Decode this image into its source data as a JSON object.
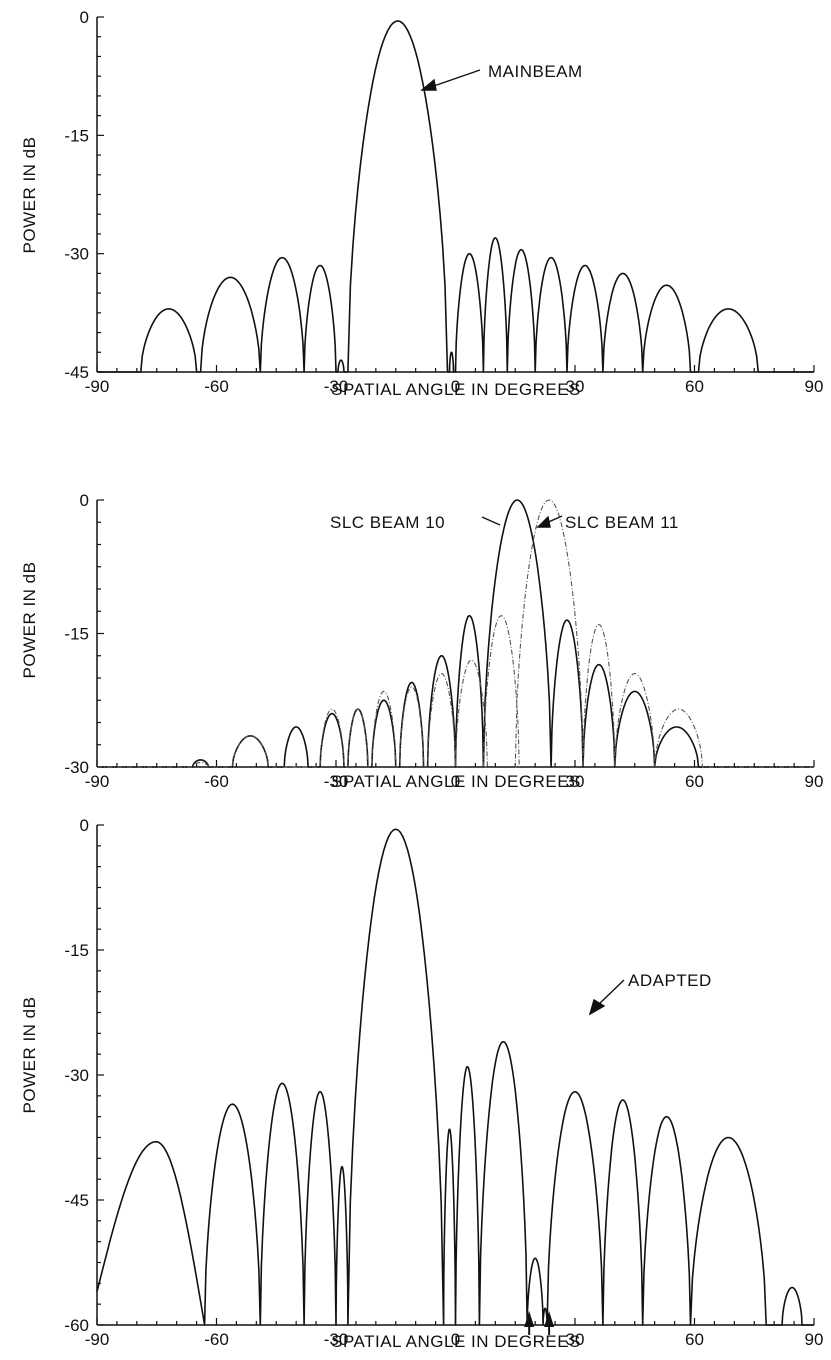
{
  "chart_data": [
    {
      "type": "line",
      "xlabel": "SPATIAL ANGLE IN DEGREES",
      "ylabel": "POWER IN dB",
      "xlim": [
        -90,
        90
      ],
      "ylim": [
        -45,
        0
      ],
      "xticks": [
        "-90",
        "-60",
        "-30",
        "0",
        "30",
        "60",
        "90"
      ],
      "yticks": [
        "0",
        "-15",
        "-30",
        "-45"
      ],
      "grid": false,
      "annotations": [
        "MAINBEAM"
      ],
      "series": [
        {
          "lobes": [
            {
              "a": -79,
              "b": -65,
              "peak": -37
            },
            {
              "a": -64,
              "b": -49,
              "peak": -33
            },
            {
              "a": -49,
              "b": -38,
              "peak": -30.5
            },
            {
              "a": -38,
              "b": -30,
              "peak": -31.5
            },
            {
              "a": -29.5,
              "b": -28,
              "peak": -43.5
            },
            {
              "a": -27,
              "b": -2,
              "peak": -0.5
            },
            {
              "a": -1.5,
              "b": -0.5,
              "peak": -42.5
            },
            {
              "a": 0,
              "b": 7,
              "peak": -30
            },
            {
              "a": 7,
              "b": 13,
              "peak": -28
            },
            {
              "a": 13,
              "b": 20,
              "peak": -29.5
            },
            {
              "a": 20,
              "b": 28,
              "peak": -30.5
            },
            {
              "a": 28,
              "b": 37,
              "peak": -31.5
            },
            {
              "a": 37,
              "b": 47,
              "peak": -32.5
            },
            {
              "a": 47,
              "b": 59,
              "peak": -34
            },
            {
              "a": 61,
              "b": 76,
              "peak": -37
            }
          ],
          "floor": -45,
          "values_at_x": [
            [
              -90,
              -45
            ],
            [
              -30,
              -45
            ],
            [
              0,
              -45
            ],
            [
              30,
              -45
            ],
            [
              76,
              -45
            ],
            [
              90,
              -45
            ]
          ]
        }
      ]
    },
    {
      "type": "line",
      "xlabel": "SPATIAL ANGLE IN DEGREES",
      "ylabel": "POWER IN dB",
      "xlim": [
        -90,
        90
      ],
      "ylim": [
        -30,
        0
      ],
      "xticks": [
        "-90",
        "-60",
        "-30",
        "0",
        "30",
        "60",
        "90"
      ],
      "yticks": [
        "0",
        "-15",
        "-30"
      ],
      "grid": false,
      "annotations": [
        "SLC BEAM 10",
        "SLC BEAM 11"
      ],
      "series": [
        {
          "name": "SLC BEAM 10",
          "lobes": [
            {
              "a": -66,
              "b": -62,
              "peak": -29.2
            },
            {
              "a": -56,
              "b": -47,
              "peak": -26.5
            },
            {
              "a": -43,
              "b": -37,
              "peak": -25.5
            },
            {
              "a": -34,
              "b": -28,
              "peak": -24
            },
            {
              "a": -27,
              "b": -22,
              "peak": -23.5
            },
            {
              "a": -21,
              "b": -15,
              "peak": -22.5
            },
            {
              "a": -14,
              "b": -8,
              "peak": -20.5
            },
            {
              "a": -7,
              "b": 0,
              "peak": -17.5
            },
            {
              "a": 0,
              "b": 7,
              "peak": -13
            },
            {
              "a": 7,
              "b": 24,
              "peak": 0
            },
            {
              "a": 24,
              "b": 32,
              "peak": -13.5
            },
            {
              "a": 32,
              "b": 40,
              "peak": -18.5
            },
            {
              "a": 40,
              "b": 50,
              "peak": -21.5
            },
            {
              "a": 50,
              "b": 61,
              "peak": -25.5
            }
          ],
          "floor": -30
        },
        {
          "name": "SLC BEAM 11",
          "lobes": [
            {
              "a": -66,
              "b": -62,
              "peak": -29.5
            },
            {
              "a": -56,
              "b": -47,
              "peak": -26.5
            },
            {
              "a": -34,
              "b": -28,
              "peak": -23.5
            },
            {
              "a": -27,
              "b": -22,
              "peak": -23.5
            },
            {
              "a": -21,
              "b": -15,
              "peak": -21.5
            },
            {
              "a": -14,
              "b": -8,
              "peak": -21
            },
            {
              "a": -7,
              "b": 0,
              "peak": -19.5
            },
            {
              "a": 0,
              "b": 8,
              "peak": -18
            },
            {
              "a": 7,
              "b": 16,
              "peak": -13
            },
            {
              "a": 15,
              "b": 32,
              "peak": 0
            },
            {
              "a": 32,
              "b": 40,
              "peak": -14
            },
            {
              "a": 40,
              "b": 50,
              "peak": -19.5
            },
            {
              "a": 50,
              "b": 62,
              "peak": -23.5
            }
          ],
          "floor": -30
        }
      ]
    },
    {
      "type": "line",
      "xlabel": "SPATIAL ANGLE IN DEGREES",
      "ylabel": "POWER IN dB",
      "xlim": [
        -90,
        90
      ],
      "ylim": [
        -60,
        0
      ],
      "xticks": [
        "-90",
        "-60",
        "-30",
        "0",
        "30",
        "60",
        "90"
      ],
      "yticks": [
        "0",
        "-15",
        "-30",
        "-45",
        "-60"
      ],
      "grid": false,
      "annotations": [
        "ADAPTED"
      ],
      "jammer_arrows_x": [
        18.5,
        23.5
      ],
      "series": [
        {
          "name": "ADAPTED",
          "lobes": [
            {
              "a": -90,
              "b": -63,
              "peak": -38,
              "left_start": -56
            },
            {
              "a": -63,
              "b": -49,
              "peak": -33.5
            },
            {
              "a": -49,
              "b": -38,
              "peak": -31
            },
            {
              "a": -38,
              "b": -30,
              "peak": -32
            },
            {
              "a": -30,
              "b": -27,
              "peak": -41
            },
            {
              "a": -27,
              "b": -3,
              "peak": -0.5
            },
            {
              "a": -3,
              "b": 0,
              "peak": -36.5
            },
            {
              "a": 0,
              "b": 6,
              "peak": -29
            },
            {
              "a": 6,
              "b": 18,
              "peak": -26
            },
            {
              "a": 18,
              "b": 22,
              "peak": -52
            },
            {
              "a": 22,
              "b": 23,
              "peak": -58
            },
            {
              "a": 23,
              "b": 37,
              "peak": -32
            },
            {
              "a": 37,
              "b": 47,
              "peak": -33
            },
            {
              "a": 47,
              "b": 59,
              "peak": -35
            },
            {
              "a": 59,
              "b": 78,
              "peak": -37.5
            },
            {
              "a": 82,
              "b": 87,
              "peak": -55.5
            }
          ],
          "floor": -60,
          "nulls": [
            {
              "x": -63,
              "y": -60
            },
            {
              "x": -49,
              "y": -58
            },
            {
              "x": -38,
              "y": -59
            },
            {
              "x": -30,
              "y": -60
            },
            {
              "x": -27,
              "y": -57
            },
            {
              "x": -3,
              "y": -56
            },
            {
              "x": 0,
              "y": -58
            },
            {
              "x": 6,
              "y": -57
            },
            {
              "x": 18,
              "y": -60
            },
            {
              "x": 23,
              "y": -60
            },
            {
              "x": 37,
              "y": -60
            },
            {
              "x": 47,
              "y": -59
            },
            {
              "x": 59,
              "y": -60
            },
            {
              "x": 82,
              "y": -60
            }
          ]
        }
      ]
    }
  ]
}
